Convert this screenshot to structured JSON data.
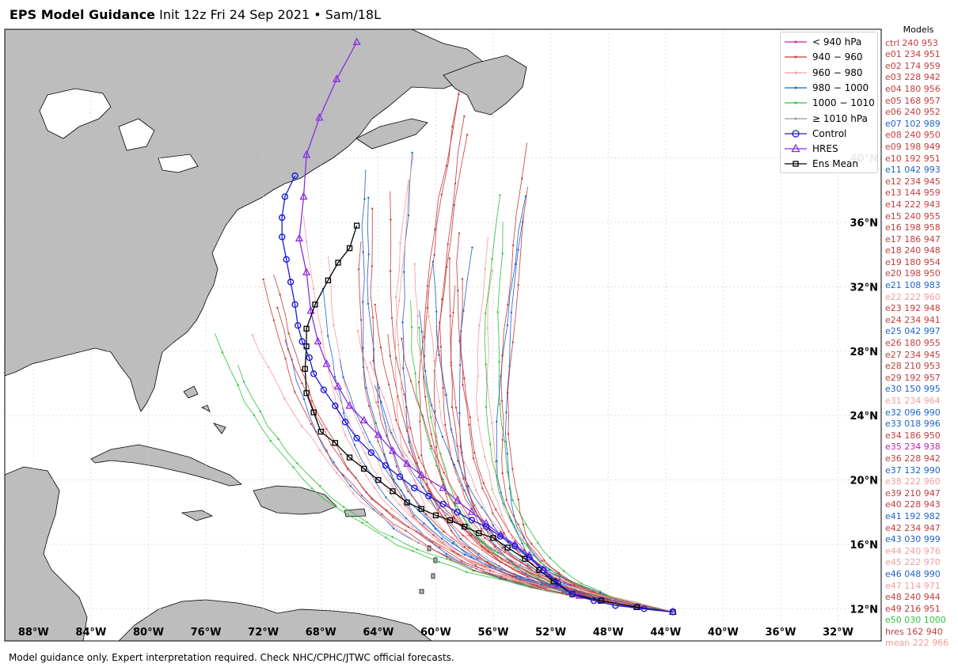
{
  "header": {
    "title_bold": "EPS Model Guidance",
    "title_rest": " Init 12z Fri 24 Sep 2021 • Sam/18L"
  },
  "footer": "Model guidance only. Expert interpretation required. Check NHC/CPHC/JTWC official forecasts.",
  "axes": {
    "lon_labels": [
      "88°W",
      "84°W",
      "80°W",
      "76°W",
      "72°W",
      "68°W",
      "64°W",
      "60°W",
      "56°W",
      "52°W",
      "48°W",
      "44°W",
      "40°W",
      "36°W",
      "32°W"
    ],
    "lat_labels": [
      "12°N",
      "16°N",
      "20°N",
      "24°N",
      "28°N",
      "32°N",
      "36°N",
      "40°N"
    ],
    "lon_range": [
      -90,
      -29
    ],
    "lat_range": [
      10,
      48
    ]
  },
  "legend": [
    {
      "label": "< 940 hPa",
      "color": "#c026a8"
    },
    {
      "label": "940 − 960",
      "color": "#c43c3c"
    },
    {
      "label": "960 − 980",
      "color": "#f39c9c"
    },
    {
      "label": "980 − 1000",
      "color": "#1f63c6"
    },
    {
      "label": "1000 − 1010",
      "color": "#2ec23a"
    },
    {
      "label": "≥ 1010 hPa",
      "color": "#999999"
    },
    {
      "label": "Control",
      "color": "#1a1ad6"
    },
    {
      "label": "HRES",
      "color": "#8b2be2"
    },
    {
      "label": "Ens Mean",
      "color": "#000000"
    }
  ],
  "models_title": "Models",
  "models": [
    {
      "text": "ctrl 240 953",
      "color": "#c43c3c"
    },
    {
      "text": "e01 234 951",
      "color": "#c43c3c"
    },
    {
      "text": "e02 174 959",
      "color": "#c43c3c"
    },
    {
      "text": "e03 228 942",
      "color": "#c43c3c"
    },
    {
      "text": "e04 180 956",
      "color": "#c43c3c"
    },
    {
      "text": "e05 168 957",
      "color": "#c43c3c"
    },
    {
      "text": "e06 240 952",
      "color": "#c43c3c"
    },
    {
      "text": "e07 102 989",
      "color": "#1f63c6"
    },
    {
      "text": "e08 240 950",
      "color": "#c43c3c"
    },
    {
      "text": "e09 198 949",
      "color": "#c43c3c"
    },
    {
      "text": "e10 192 951",
      "color": "#c43c3c"
    },
    {
      "text": "e11 042 993",
      "color": "#1f63c6"
    },
    {
      "text": "e12 234 945",
      "color": "#c43c3c"
    },
    {
      "text": "e13 144 959",
      "color": "#c43c3c"
    },
    {
      "text": "e14 222 943",
      "color": "#c43c3c"
    },
    {
      "text": "e15 240 955",
      "color": "#c43c3c"
    },
    {
      "text": "e16 198 958",
      "color": "#c43c3c"
    },
    {
      "text": "e17 186 947",
      "color": "#c43c3c"
    },
    {
      "text": "e18 240 948",
      "color": "#c43c3c"
    },
    {
      "text": "e19 180 954",
      "color": "#c43c3c"
    },
    {
      "text": "e20 198 950",
      "color": "#c43c3c"
    },
    {
      "text": "e21 108 983",
      "color": "#1f63c6"
    },
    {
      "text": "e22 222 960",
      "color": "#f39c9c"
    },
    {
      "text": "e23 192 948",
      "color": "#c43c3c"
    },
    {
      "text": "e24 234 941",
      "color": "#c43c3c"
    },
    {
      "text": "e25 042 997",
      "color": "#1f63c6"
    },
    {
      "text": "e26 180 955",
      "color": "#c43c3c"
    },
    {
      "text": "e27 234 945",
      "color": "#c43c3c"
    },
    {
      "text": "e28 210 953",
      "color": "#c43c3c"
    },
    {
      "text": "e29 192 957",
      "color": "#c43c3c"
    },
    {
      "text": "e30 150 995",
      "color": "#1f63c6"
    },
    {
      "text": "e31 234 964",
      "color": "#f39c9c"
    },
    {
      "text": "e32 096 990",
      "color": "#1f63c6"
    },
    {
      "text": "e33 018 996",
      "color": "#1f63c6"
    },
    {
      "text": "e34 186 950",
      "color": "#c43c3c"
    },
    {
      "text": "e35 234 938",
      "color": "#c026a8"
    },
    {
      "text": "e36 228 942",
      "color": "#c43c3c"
    },
    {
      "text": "e37 132 990",
      "color": "#1f63c6"
    },
    {
      "text": "e38 222 960",
      "color": "#f39c9c"
    },
    {
      "text": "e39 210 947",
      "color": "#c43c3c"
    },
    {
      "text": "e40 228 943",
      "color": "#c43c3c"
    },
    {
      "text": "e41 192 982",
      "color": "#1f63c6"
    },
    {
      "text": "e42 234 947",
      "color": "#c43c3c"
    },
    {
      "text": "e43 030 999",
      "color": "#1f63c6"
    },
    {
      "text": "e44 240 976",
      "color": "#f39c9c"
    },
    {
      "text": "e45 222 970",
      "color": "#f39c9c"
    },
    {
      "text": "e46 048 990",
      "color": "#1f63c6"
    },
    {
      "text": "e47 114 971",
      "color": "#f39c9c"
    },
    {
      "text": "e48 240 944",
      "color": "#c43c3c"
    },
    {
      "text": "e49 216 951",
      "color": "#c43c3c"
    },
    {
      "text": "e50 030 1000",
      "color": "#2ec23a"
    },
    {
      "text": "hres 162 940",
      "color": "#c43c3c"
    },
    {
      "text": "mean 222 966",
      "color": "#f39c9c"
    }
  ],
  "tracks": {
    "control": {
      "color": "#1a1ad6",
      "points": [
        [
          -43.5,
          11.8
        ],
        [
          -45.5,
          12.0
        ],
        [
          -47.5,
          12.2
        ],
        [
          -49,
          12.5
        ],
        [
          -50.5,
          12.9
        ],
        [
          -51.5,
          13.6
        ],
        [
          -52.5,
          14.4
        ],
        [
          -53.5,
          15.2
        ],
        [
          -54.5,
          15.9
        ],
        [
          -55.5,
          16.5
        ],
        [
          -56.5,
          17.1
        ],
        [
          -57.5,
          17.5
        ],
        [
          -58.5,
          18.0
        ],
        [
          -59.5,
          18.5
        ],
        [
          -60.5,
          19.0
        ],
        [
          -61.5,
          19.5
        ],
        [
          -62.5,
          20.2
        ],
        [
          -63.5,
          20.9
        ],
        [
          -64.5,
          21.7
        ],
        [
          -65.5,
          22.6
        ],
        [
          -66.3,
          23.6
        ],
        [
          -67.0,
          24.6
        ],
        [
          -67.8,
          25.6
        ],
        [
          -68.5,
          26.6
        ],
        [
          -68.8,
          27.6
        ],
        [
          -69.3,
          28.6
        ],
        [
          -69.6,
          29.6
        ],
        [
          -69.8,
          30.9
        ],
        [
          -70.1,
          32.3
        ],
        [
          -70.4,
          33.7
        ],
        [
          -70.7,
          35.1
        ],
        [
          -70.7,
          36.3
        ],
        [
          -70.5,
          37.6
        ],
        [
          -69.8,
          38.9
        ]
      ]
    },
    "hres": {
      "color": "#8b2be2",
      "points": [
        [
          -43.5,
          11.8
        ],
        [
          -46,
          12.1
        ],
        [
          -48.5,
          12.5
        ],
        [
          -50,
          12.8
        ],
        [
          -51.5,
          13.5
        ],
        [
          -52.5,
          14.4
        ],
        [
          -53.5,
          15.3
        ],
        [
          -54.5,
          16.0
        ],
        [
          -55.5,
          16.6
        ],
        [
          -56.5,
          17.3
        ],
        [
          -57.5,
          18.0
        ],
        [
          -58.5,
          18.7
        ],
        [
          -59.5,
          19.5
        ],
        [
          -61,
          20.3
        ],
        [
          -62,
          21.0
        ],
        [
          -63,
          21.8
        ],
        [
          -64,
          22.8
        ],
        [
          -65,
          23.7
        ],
        [
          -66,
          24.6
        ],
        [
          -66.8,
          25.8
        ],
        [
          -67.6,
          27.2
        ],
        [
          -68.2,
          28.6
        ],
        [
          -68.7,
          30.5
        ],
        [
          -69.0,
          32.9
        ],
        [
          -69.5,
          35.0
        ],
        [
          -69.2,
          37.6
        ],
        [
          -69.0,
          40.2
        ],
        [
          -68.1,
          42.5
        ],
        [
          -66.9,
          44.9
        ],
        [
          -65.5,
          47.2
        ]
      ]
    },
    "mean": {
      "color": "#000000",
      "points": [
        [
          -43.5,
          11.8
        ],
        [
          -46,
          12.1
        ],
        [
          -48.5,
          12.5
        ],
        [
          -50.5,
          12.9
        ],
        [
          -51.8,
          13.7
        ],
        [
          -52.8,
          14.4
        ],
        [
          -53.8,
          15.1
        ],
        [
          -55,
          15.8
        ],
        [
          -56,
          16.4
        ],
        [
          -57,
          16.7
        ],
        [
          -58,
          17.1
        ],
        [
          -59,
          17.5
        ],
        [
          -60,
          17.8
        ],
        [
          -61,
          18.2
        ],
        [
          -62,
          18.6
        ],
        [
          -63,
          19.3
        ],
        [
          -64,
          20.0
        ],
        [
          -65,
          20.7
        ],
        [
          -66,
          21.4
        ],
        [
          -67,
          22.3
        ],
        [
          -68,
          23.0
        ],
        [
          -68.5,
          24.2
        ],
        [
          -69.0,
          25.4
        ],
        [
          -69.1,
          26.9
        ],
        [
          -69.0,
          28.3
        ],
        [
          -69.0,
          29.4
        ],
        [
          -68.4,
          30.9
        ],
        [
          -67.5,
          32.4
        ],
        [
          -66.8,
          33.5
        ],
        [
          -66.0,
          34.4
        ],
        [
          -65.5,
          35.8
        ]
      ]
    }
  }
}
